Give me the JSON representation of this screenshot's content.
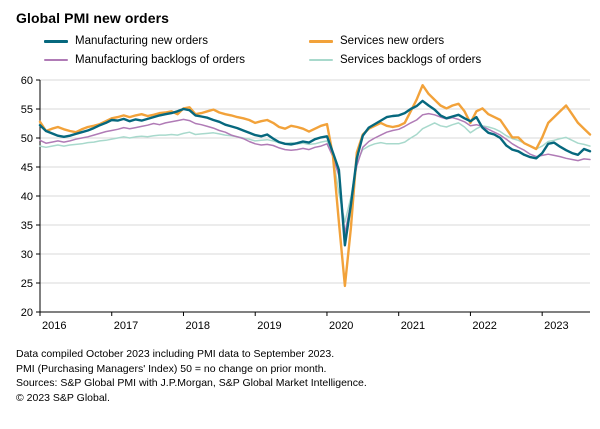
{
  "title": "Global PMI new orders",
  "legend": [
    {
      "label": "Manufacturing new orders",
      "color": "#06687e",
      "weight": 3
    },
    {
      "label": "Services new orders",
      "color": "#f2a23a",
      "weight": 3
    },
    {
      "label": "Manufacturing backlogs of orders",
      "color": "#b07bb6",
      "weight": 2
    },
    {
      "label": "Services backlogs of orders",
      "color": "#a8d9cc",
      "weight": 2
    }
  ],
  "footer": {
    "lines": [
      "Data compiled October 2023 including PMI data to September 2023.",
      "PMI (Purchasing Managers' Index) 50 = no change on prior month.",
      "Sources: S&P Global PMI with J.P.Morgan, S&P Global Market Intelligence.",
      "© 2023 S&P Global."
    ]
  },
  "chart_data": {
    "type": "line",
    "title": "Global PMI new orders",
    "x_start": "2016-01",
    "x_end": "2023-09",
    "x_frequency": "monthly",
    "x_tick_labels": [
      "2016",
      "2017",
      "2018",
      "2019",
      "2020",
      "2021",
      "2022",
      "2023"
    ],
    "ylim": [
      20,
      60
    ],
    "y_ticks": [
      20,
      25,
      30,
      35,
      40,
      45,
      50,
      55,
      60
    ],
    "grid": true,
    "grid_color": "#d9d9d9",
    "legend_position": "top",
    "reference_level_note": "50 = no change on prior month",
    "series": [
      {
        "name": "Manufacturing new orders",
        "color": "#06687e",
        "width": 2.4,
        "values": [
          52.2,
          51.2,
          50.8,
          50.4,
          50.2,
          50.4,
          50.7,
          51.0,
          51.3,
          51.7,
          52.2,
          52.6,
          53.1,
          53.0,
          53.3,
          52.9,
          53.2,
          53.0,
          53.3,
          53.6,
          53.9,
          54.1,
          54.3,
          54.6,
          55.0,
          54.8,
          53.9,
          53.7,
          53.5,
          53.1,
          52.8,
          52.3,
          52.0,
          51.7,
          51.3,
          50.9,
          50.5,
          50.3,
          50.6,
          49.9,
          49.3,
          49.0,
          48.9,
          49.1,
          49.4,
          49.2,
          49.8,
          50.1,
          50.3,
          47.5,
          44.5,
          31.5,
          38.5,
          46.5,
          50.4,
          51.8,
          52.4,
          53.0,
          53.6,
          53.8,
          53.9,
          54.3,
          55.0,
          55.5,
          56.4,
          55.6,
          54.9,
          53.9,
          53.4,
          53.7,
          54.0,
          53.4,
          52.9,
          53.6,
          51.8,
          50.9,
          50.6,
          50.0,
          48.7,
          48.0,
          47.7,
          47.1,
          46.7,
          46.5,
          47.4,
          49.0,
          49.2,
          48.5,
          47.9,
          47.4,
          47.1,
          48.1,
          47.7
        ]
      },
      {
        "name": "Services new orders",
        "color": "#f2a23a",
        "width": 2.4,
        "values": [
          52.8,
          51.2,
          51.6,
          51.9,
          51.5,
          51.2,
          51.0,
          51.5,
          51.9,
          52.1,
          52.4,
          52.9,
          53.4,
          53.6,
          53.9,
          53.6,
          53.9,
          54.1,
          53.8,
          54.0,
          54.3,
          54.4,
          54.6,
          54.1,
          55.1,
          55.3,
          54.1,
          54.3,
          54.6,
          54.9,
          54.4,
          54.1,
          53.9,
          53.6,
          53.4,
          53.1,
          52.6,
          52.9,
          53.1,
          52.6,
          51.9,
          51.6,
          52.1,
          51.9,
          51.6,
          51.1,
          51.6,
          52.1,
          52.4,
          47.0,
          35.5,
          24.5,
          34.5,
          47.5,
          50.6,
          51.6,
          52.1,
          52.6,
          52.1,
          51.9,
          52.1,
          52.6,
          54.6,
          56.6,
          59.1,
          57.6,
          56.6,
          55.6,
          55.1,
          55.6,
          55.9,
          54.6,
          52.6,
          54.6,
          55.1,
          54.1,
          53.6,
          53.1,
          51.6,
          50.1,
          50.1,
          49.1,
          48.6,
          48.1,
          50.1,
          52.6,
          53.6,
          54.6,
          55.6,
          54.1,
          52.6,
          51.6,
          50.6
        ]
      },
      {
        "name": "Manufacturing backlogs of orders",
        "color": "#b07bb6",
        "width": 1.5,
        "values": [
          49.6,
          49.1,
          49.3,
          49.5,
          49.3,
          49.5,
          49.8,
          50.0,
          50.2,
          50.5,
          50.8,
          51.1,
          51.3,
          51.5,
          51.8,
          51.6,
          51.8,
          52.0,
          52.2,
          52.5,
          52.3,
          52.6,
          52.8,
          53.0,
          53.2,
          53.0,
          52.5,
          52.3,
          52.0,
          51.7,
          51.3,
          51.0,
          50.5,
          50.2,
          49.9,
          49.4,
          49.0,
          48.8,
          48.9,
          48.7,
          48.3,
          48.0,
          47.9,
          48.0,
          48.2,
          48.0,
          48.4,
          48.6,
          49.0,
          46.8,
          43.5,
          33.5,
          38.8,
          45.2,
          48.4,
          49.4,
          50.0,
          50.5,
          51.0,
          51.3,
          51.5,
          52.0,
          52.6,
          53.1,
          54.0,
          54.2,
          54.0,
          53.6,
          53.3,
          53.5,
          53.2,
          52.8,
          52.1,
          52.3,
          52.0,
          51.5,
          51.0,
          50.5,
          49.8,
          49.0,
          48.4,
          47.9,
          47.2,
          46.8,
          47.0,
          47.2,
          47.0,
          46.8,
          46.5,
          46.3,
          46.1,
          46.4,
          46.3
        ]
      },
      {
        "name": "Services backlogs of orders",
        "color": "#a8d9cc",
        "width": 1.5,
        "values": [
          48.6,
          48.4,
          48.6,
          48.8,
          48.6,
          48.8,
          48.9,
          49.0,
          49.2,
          49.3,
          49.5,
          49.6,
          49.8,
          50.0,
          50.2,
          50.0,
          50.2,
          50.3,
          50.2,
          50.4,
          50.5,
          50.5,
          50.6,
          50.5,
          50.8,
          51.0,
          50.6,
          50.7,
          50.8,
          50.9,
          50.7,
          50.5,
          50.4,
          50.2,
          50.0,
          49.8,
          49.5,
          49.6,
          49.7,
          49.5,
          49.2,
          49.0,
          49.2,
          49.0,
          49.1,
          48.9,
          49.0,
          49.3,
          49.5,
          46.8,
          40.5,
          35.5,
          39.8,
          45.8,
          48.0,
          48.6,
          49.0,
          49.2,
          49.0,
          49.0,
          49.0,
          49.3,
          50.0,
          50.6,
          51.6,
          52.1,
          52.6,
          52.1,
          51.9,
          52.3,
          52.6,
          51.9,
          50.9,
          51.6,
          52.1,
          51.9,
          51.6,
          51.1,
          50.4,
          49.9,
          49.6,
          49.1,
          48.6,
          48.1,
          48.6,
          49.4,
          49.6,
          49.9,
          50.1,
          49.6,
          49.1,
          48.9,
          48.6
        ]
      }
    ]
  }
}
